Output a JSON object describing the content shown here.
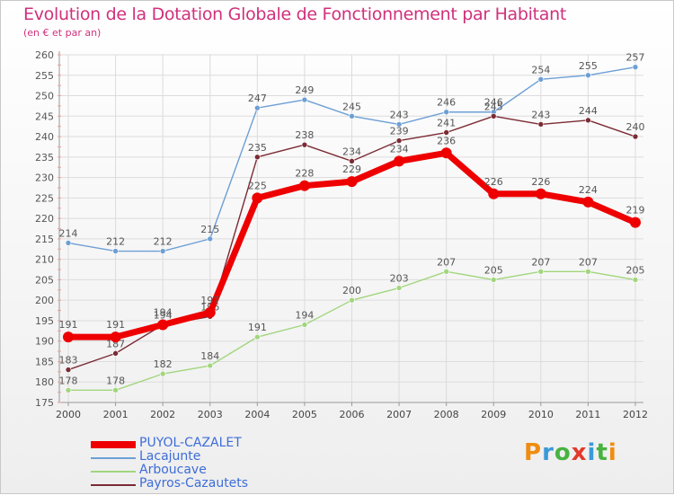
{
  "header": {
    "title": "Evolution de la Dotation Globale de Fonctionnement par Habitant",
    "subtitle": "(en € et par an)"
  },
  "chart_data": {
    "type": "line",
    "title": "Evolution de la Dotation Globale de Fonctionnement par Habitant",
    "subtitle": "(en € et par an)",
    "xlabel": "",
    "ylabel": "",
    "ylim": [
      175,
      260
    ],
    "yticks": [
      175,
      180,
      185,
      190,
      195,
      200,
      205,
      210,
      215,
      220,
      225,
      230,
      235,
      240,
      245,
      250,
      255,
      260
    ],
    "grid": true,
    "legend_position": "bottom-left",
    "x": [
      "2000",
      "2001",
      "2002",
      "2003",
      "2004",
      "2005",
      "2006",
      "2007",
      "2008",
      "2009",
      "2010",
      "2011",
      "2012"
    ],
    "series": [
      {
        "name": "PUYOL-CAZALET",
        "color": "#ee0000",
        "highlight": true,
        "values": [
          191,
          191,
          194,
          197,
          225,
          228,
          229,
          234,
          236,
          226,
          226,
          224,
          219
        ]
      },
      {
        "name": "Lacajunte",
        "color": "#6d9fd5",
        "highlight": false,
        "values": [
          214,
          212,
          212,
          215,
          247,
          249,
          245,
          243,
          246,
          246,
          254,
          255,
          257
        ]
      },
      {
        "name": "Arboucave",
        "color": "#a2d67e",
        "highlight": false,
        "values": [
          178,
          178,
          182,
          184,
          191,
          194,
          200,
          203,
          207,
          205,
          207,
          207,
          205
        ]
      },
      {
        "name": "Payros-Cazautets",
        "color": "#7b2b34",
        "highlight": false,
        "values": [
          183,
          187,
          194,
          196,
          235,
          238,
          234,
          239,
          241,
          245,
          243,
          244,
          240
        ]
      }
    ]
  },
  "logo": {
    "letters": [
      "P",
      "r",
      "o",
      "x",
      "i",
      "t",
      "i"
    ],
    "colors": [
      "#f08c10",
      "#3a9ad9",
      "#48b340",
      "#e23a2a",
      "#3a9ad9",
      "#48b340",
      "#f08c10"
    ]
  }
}
